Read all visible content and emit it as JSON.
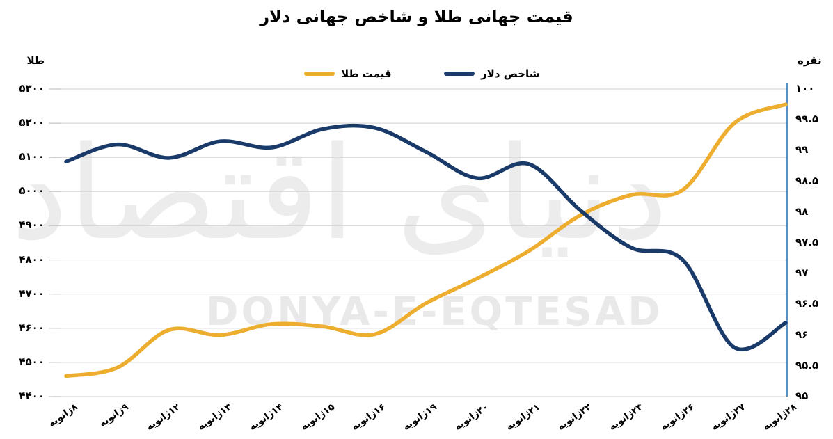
{
  "title": "قیمت جهانی طلا و شاخص جهانی دلار",
  "legend": {
    "gold": {
      "label": "قیمت طلا",
      "color": "#EDAE2F"
    },
    "navy": {
      "label": "شاخص دلار",
      "color": "#1A3A69"
    }
  },
  "axis_titles": {
    "left": "طلا",
    "right": "نقره"
  },
  "watermark": {
    "fa": "دنیای اقتصاد",
    "en": "DONYA-E-EQTESAD"
  },
  "colors": {
    "gold_line": "#EDAE2F",
    "navy_line": "#1A3A69",
    "gridline": "#d9d9d9",
    "right_axis_line": "#2E74B5",
    "tick_dash": "#c9c9c9"
  },
  "chart_data": {
    "type": "line",
    "title": "قیمت جهانی طلا و شاخص جهانی دلار",
    "grid": "horizontal",
    "legend_position": "top",
    "categories": [
      "۸ژانویه",
      "۹ژانویه",
      "۱۲ژانویه",
      "۱۳ژانویه",
      "۱۴ژانویه",
      "۱۵ژانویه",
      "۱۶ژانویه",
      "۱۹ژانویه",
      "۲۰ژانویه",
      "۲۱ژانویه",
      "۲۲ژانویه",
      "۲۳ژانویه",
      "۲۶ژانویه",
      "۲۷ژانویه",
      "۲۸ژانویه"
    ],
    "series": [
      {
        "name": "قیمت طلا",
        "axis": "left",
        "color": "#EDAE2F",
        "values": [
          4460,
          4485,
          4595,
          4580,
          4612,
          4605,
          4582,
          4673,
          4746,
          4826,
          4930,
          4990,
          5005,
          5200,
          5255
        ]
      },
      {
        "name": "شاخص دلار",
        "axis": "right",
        "color": "#1A3A69",
        "values": [
          98.82,
          99.1,
          98.88,
          99.15,
          99.05,
          99.35,
          99.37,
          98.98,
          98.55,
          98.78,
          98.03,
          97.42,
          97.22,
          95.8,
          96.2
        ]
      }
    ],
    "left_axis": {
      "title": "طلا",
      "min": 4400,
      "max": 5300,
      "step": 100,
      "tick_labels": [
        "۵۳۰۰",
        "۵۲۰۰",
        "۵۱۰۰",
        "۵۰۰۰",
        "۴۹۰۰",
        "۴۸۰۰",
        "۴۷۰۰",
        "۴۶۰۰",
        "۴۵۰۰",
        "۴۴۰۰"
      ]
    },
    "right_axis": {
      "title": "نقره",
      "min": 95,
      "max": 100,
      "step": 0.5,
      "tick_labels": [
        "۱۰۰",
        "۹۹.۵",
        "۹۹",
        "۹۸.۵",
        "۹۸",
        "۹۷.۵",
        "۹۷",
        "۹۶.۵",
        "۹۶",
        "۹۵.۵",
        "۹۵"
      ]
    }
  }
}
